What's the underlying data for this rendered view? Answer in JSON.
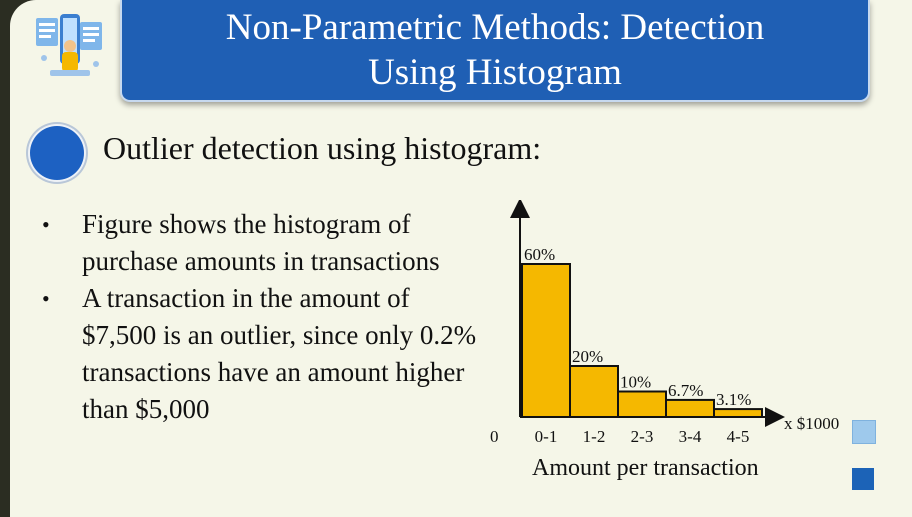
{
  "title": {
    "line1": "Non-Parametric Methods: Detection",
    "line2": "Using Histogram"
  },
  "logo": {
    "icon": "person-with-documents-icon"
  },
  "heading": "Outlier detection using histogram:",
  "bullets": [
    "Figure shows the histogram of purchase amounts in transactions",
    "A transaction in the amount of $7,500 is an outlier, since only 0.2% transactions have an amount higher than $5,000"
  ],
  "colors": {
    "title_bg": "#1f5fb4",
    "bar_fill": "#f5b800",
    "bullet_circle": "#1d61c2"
  },
  "chart_data": {
    "type": "bar",
    "categories": [
      "0-1",
      "1-2",
      "2-3",
      "3-4",
      "4-5"
    ],
    "values": [
      60,
      20,
      10,
      6.7,
      3.1
    ],
    "data_labels": [
      "60%",
      "20%",
      "10%",
      "6.7%",
      "3.1%"
    ],
    "origin_label": "0",
    "x_unit_label": "x $1000",
    "xlabel": "Amount per transaction",
    "ylabel": "",
    "ylim": [
      0,
      60
    ],
    "grid": false
  }
}
